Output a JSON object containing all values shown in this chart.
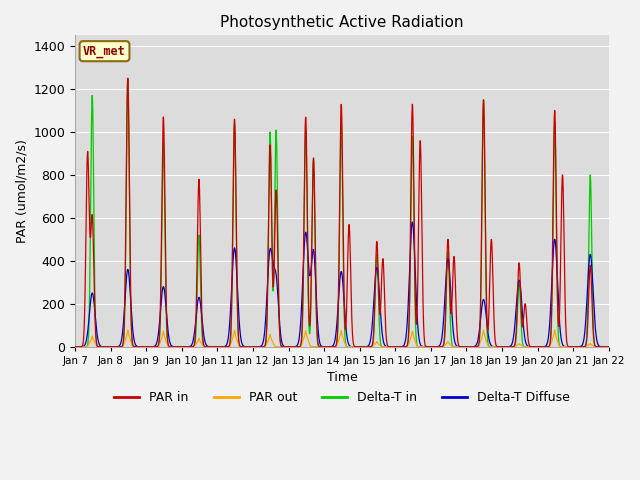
{
  "title": "Photosynthetic Active Radiation",
  "xlabel": "Time",
  "ylabel": "PAR (umol/m2/s)",
  "ylim": [
    0,
    1450
  ],
  "background_color": "#dcdcdc",
  "plot_bg": "#dcdcdc",
  "label_box_text": "VR_met",
  "label_box_bg": "#ffffcc",
  "label_box_border": "#8b6914",
  "tick_labels": [
    "Jan 7",
    "Jan 8",
    "Jan 9",
    "Jan 10",
    "Jan 11",
    "Jan 12",
    "Jan 13",
    "Jan 14",
    "Jan 15",
    "Jan 16",
    "Jan 17",
    "Jan 18",
    "Jan 19",
    "Jan 20",
    "Jan 21",
    "Jan 22"
  ],
  "series": {
    "par_in": {
      "color": "#cc0000",
      "label": "PAR in"
    },
    "par_out": {
      "color": "#ffa500",
      "label": "PAR out"
    },
    "delta_t_in": {
      "color": "#00cc00",
      "label": "Delta-T in"
    },
    "delta_t_diffuse": {
      "color": "#0000cc",
      "label": "Delta-T Diffuse"
    }
  },
  "day_data": {
    "par_in_peaks": [
      600,
      1250,
      1070,
      780,
      1060,
      940,
      1070,
      1130,
      490,
      1130,
      500,
      1150,
      390,
      1100,
      380
    ],
    "par_in_peak2": [
      900,
      0,
      0,
      0,
      0,
      730,
      880,
      570,
      410,
      960,
      420,
      500,
      200,
      800,
      0
    ],
    "par_in_off2": [
      0.35,
      0,
      0,
      0,
      0,
      0.65,
      0.7,
      0.7,
      0.65,
      0.7,
      0.65,
      0.7,
      0.65,
      0.7,
      0
    ],
    "par_out_peaks": [
      50,
      80,
      75,
      40,
      80,
      60,
      80,
      80,
      25,
      75,
      25,
      80,
      15,
      80,
      15
    ],
    "green_peaks": [
      1170,
      1250,
      950,
      520,
      1040,
      1000,
      1010,
      1050,
      430,
      980,
      440,
      1150,
      290,
      1050,
      800
    ],
    "green_peak2": [
      0,
      0,
      0,
      0,
      0,
      1010,
      870,
      0,
      0,
      0,
      0,
      0,
      0,
      0,
      0
    ],
    "green_off2": [
      0,
      0,
      0,
      0,
      0,
      0.65,
      0.7,
      0,
      0,
      0,
      0,
      0,
      0,
      0,
      0
    ],
    "blue_peaks": [
      250,
      360,
      280,
      230,
      460,
      440,
      530,
      350,
      370,
      580,
      410,
      220,
      310,
      500,
      430
    ],
    "blue_peak2": [
      0,
      0,
      0,
      0,
      0,
      290,
      440,
      0,
      0,
      0,
      0,
      0,
      0,
      0,
      0
    ],
    "blue_off2": [
      0,
      0,
      0,
      0,
      0,
      0.65,
      0.7,
      0,
      0,
      0,
      0,
      0,
      0,
      0,
      0
    ]
  }
}
